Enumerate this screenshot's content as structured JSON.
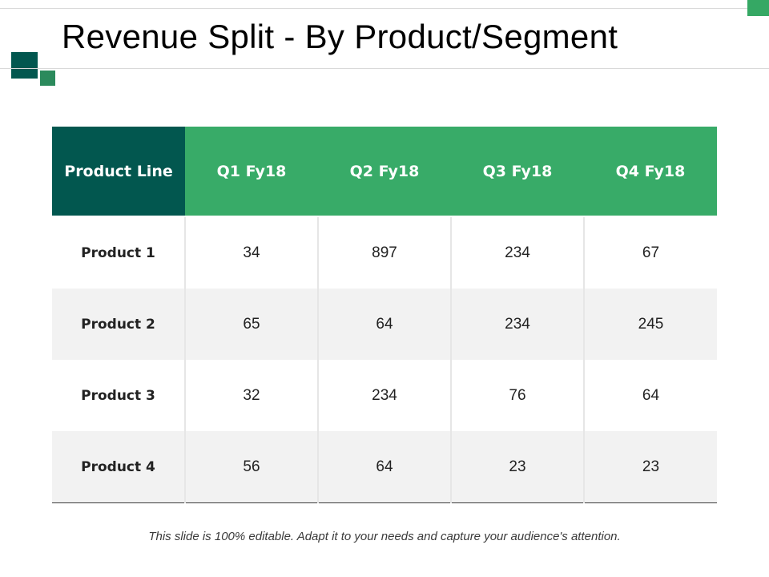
{
  "slide": {
    "title": "Revenue Split - By Product/Segment",
    "footer": "This slide is 100% editable. Adapt it to your needs and capture your audience's attention."
  },
  "colors": {
    "header_dark": "#02574f",
    "header_green": "#38ab68",
    "accent_green": "#35a864",
    "deco_green": "#2b8a5c",
    "alt_row": "#f2f2f2"
  },
  "table": {
    "headers": [
      "Product Line",
      "Q1 Fy18",
      "Q2 Fy18",
      "Q3 Fy18",
      "Q4 Fy18"
    ],
    "rows": [
      {
        "label": "Product 1",
        "values": [
          "34",
          "897",
          "234",
          "67"
        ]
      },
      {
        "label": "Product 2",
        "values": [
          "65",
          "64",
          "234",
          "245"
        ]
      },
      {
        "label": "Product 3",
        "values": [
          "32",
          "234",
          "76",
          "64"
        ]
      },
      {
        "label": "Product 4",
        "values": [
          "56",
          "64",
          "23",
          "23"
        ]
      }
    ]
  }
}
